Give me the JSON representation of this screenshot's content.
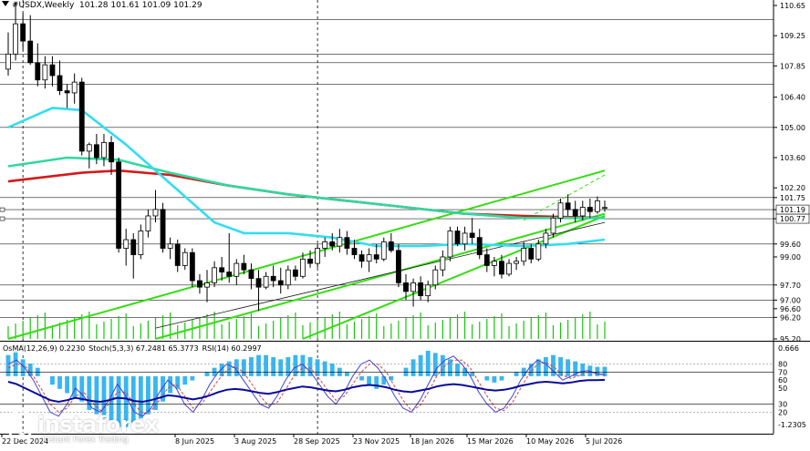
{
  "header": {
    "symbol": "#USDX,Weekly",
    "ohlc": "101.28 101.61 101.09 101.29"
  },
  "indicators": {
    "osma": "OsMA(12,26,9) 0.2230",
    "stoch": "Stoch(5,3,3) 67.2481 65.3773",
    "rsi": "RSI(14) 60.2997"
  },
  "logo": {
    "name": "instaforex",
    "tagline": "Instant Forex Trading"
  },
  "colors": {
    "bull": "#ffffff",
    "bear": "#000000",
    "ma_red": "#d6191a",
    "ma_green": "#2ed9a0",
    "ma_cyan": "#33ddf0",
    "channel": "#33dd11",
    "osma": "#38b6f2",
    "stoch_main": "#3f3fd6",
    "stoch_signal": "#d64040",
    "rsi": "#0a0a9a"
  },
  "chart_data": {
    "type": "candlestick",
    "instrument": "#USDX",
    "timeframe": "Weekly",
    "last_ohlc": {
      "open": 101.28,
      "high": 101.61,
      "low": 101.09,
      "close": 101.29
    },
    "price_axis_labels": [
      "110.65",
      "109.25",
      "107.85",
      "106.40",
      "105.00",
      "103.60",
      "102.20",
      "101.75",
      "101.19",
      "100.77",
      "99.60",
      "99.00",
      "97.70",
      "97.00",
      "96.60",
      "96.20",
      "95.20"
    ],
    "level_lines": [
      110.0,
      108.4,
      108.0,
      107.0,
      105.0,
      101.75,
      101.19,
      100.77,
      99.6,
      97.7,
      97.0,
      96.2
    ],
    "time_axis_labels": [
      "22 Dec 2024",
      "8 Jun 2025",
      "3 Aug 2025",
      "28 Sep 2025",
      "23 Nov 2025",
      "18 Jan 2026",
      "15 Mar 2026",
      "10 May 2026",
      "5 Jul 2026"
    ],
    "candles": [
      [
        107.7,
        109.4,
        107.4,
        108.4
      ],
      [
        108.4,
        110.8,
        108.1,
        109.8
      ],
      [
        109.8,
        110.3,
        108.6,
        109.0
      ],
      [
        109.0,
        110.2,
        107.9,
        108.0
      ],
      [
        108.0,
        108.9,
        106.9,
        107.2
      ],
      [
        107.2,
        108.3,
        106.8,
        107.9
      ],
      [
        107.9,
        108.3,
        106.9,
        107.4
      ],
      [
        107.4,
        108.1,
        106.5,
        106.7
      ],
      [
        106.7,
        107.0,
        105.9,
        106.6
      ],
      [
        106.6,
        107.5,
        106.1,
        107.1
      ],
      [
        107.1,
        107.3,
        103.7,
        103.9
      ],
      [
        103.9,
        104.3,
        103.1,
        104.2
      ],
      [
        104.2,
        104.7,
        103.3,
        103.6
      ],
      [
        103.6,
        104.7,
        103.2,
        104.3
      ],
      [
        104.3,
        104.6,
        102.8,
        103.4
      ],
      [
        103.4,
        103.6,
        99.2,
        99.4
      ],
      [
        99.4,
        100.3,
        98.6,
        99.8
      ],
      [
        99.8,
        100.1,
        98.0,
        99.1
      ],
      [
        99.1,
        100.5,
        98.9,
        100.2
      ],
      [
        100.2,
        101.2,
        99.9,
        100.9
      ],
      [
        100.9,
        102.1,
        100.6,
        101.2
      ],
      [
        101.2,
        101.5,
        99.2,
        99.4
      ],
      [
        99.4,
        99.9,
        98.9,
        99.6
      ],
      [
        99.6,
        99.8,
        98.3,
        98.6
      ],
      [
        98.6,
        99.4,
        98.4,
        99.2
      ],
      [
        99.2,
        99.4,
        97.6,
        97.9
      ],
      [
        97.9,
        98.2,
        97.3,
        97.6
      ],
      [
        97.6,
        98.4,
        96.9,
        97.8
      ],
      [
        97.8,
        98.8,
        97.6,
        98.5
      ],
      [
        98.5,
        99.0,
        97.9,
        98.3
      ],
      [
        98.3,
        100.1,
        97.8,
        98.1
      ],
      [
        98.1,
        98.9,
        97.7,
        98.7
      ],
      [
        98.7,
        99.1,
        98.2,
        98.4
      ],
      [
        98.4,
        98.7,
        97.5,
        98.0
      ],
      [
        98.0,
        98.4,
        96.5,
        97.6
      ],
      [
        97.6,
        98.3,
        97.5,
        98.1
      ],
      [
        98.1,
        98.6,
        97.6,
        97.9
      ],
      [
        97.9,
        98.5,
        97.3,
        97.7
      ],
      [
        97.7,
        98.6,
        97.5,
        98.4
      ],
      [
        98.4,
        98.6,
        97.9,
        98.1
      ],
      [
        98.1,
        99.2,
        98.0,
        98.9
      ],
      [
        98.9,
        99.3,
        98.5,
        98.7
      ],
      [
        98.7,
        99.6,
        98.5,
        99.4
      ],
      [
        99.4,
        99.9,
        99.0,
        99.7
      ],
      [
        99.7,
        100.1,
        99.3,
        99.5
      ],
      [
        99.5,
        100.3,
        99.2,
        99.9
      ],
      [
        99.9,
        100.2,
        99.1,
        99.4
      ],
      [
        99.4,
        99.8,
        98.9,
        99.1
      ],
      [
        99.1,
        99.3,
        98.5,
        98.8
      ],
      [
        98.8,
        99.4,
        98.3,
        99.1
      ],
      [
        99.1,
        99.6,
        98.7,
        98.9
      ],
      [
        98.9,
        99.9,
        98.8,
        99.7
      ],
      [
        99.7,
        100.1,
        99.2,
        99.3
      ],
      [
        99.3,
        99.6,
        97.6,
        97.8
      ],
      [
        97.8,
        98.2,
        97.0,
        97.4
      ],
      [
        97.4,
        98.0,
        96.7,
        97.8
      ],
      [
        97.8,
        98.1,
        97.0,
        97.2
      ],
      [
        97.2,
        97.9,
        96.9,
        97.7
      ],
      [
        97.7,
        98.6,
        97.5,
        98.4
      ],
      [
        98.4,
        99.3,
        98.1,
        99.0
      ],
      [
        99.0,
        100.4,
        98.8,
        100.2
      ],
      [
        100.2,
        100.4,
        99.5,
        99.6
      ],
      [
        99.6,
        100.4,
        99.3,
        100.1
      ],
      [
        100.1,
        100.8,
        99.6,
        99.9
      ],
      [
        99.9,
        100.3,
        98.9,
        99.1
      ],
      [
        99.1,
        99.4,
        98.3,
        98.6
      ],
      [
        98.6,
        99.0,
        98.1,
        98.8
      ],
      [
        98.8,
        99.1,
        98.0,
        98.2
      ],
      [
        98.2,
        98.9,
        98.1,
        98.7
      ],
      [
        98.7,
        99.0,
        98.4,
        98.8
      ],
      [
        98.8,
        99.7,
        98.6,
        99.4
      ],
      [
        99.4,
        99.6,
        98.7,
        98.9
      ],
      [
        98.9,
        99.8,
        98.8,
        99.6
      ],
      [
        99.6,
        100.3,
        99.4,
        100.1
      ],
      [
        100.1,
        101.0,
        99.9,
        100.8
      ],
      [
        100.8,
        101.7,
        100.6,
        101.5
      ],
      [
        101.5,
        101.9,
        100.9,
        101.2
      ],
      [
        101.2,
        101.6,
        100.6,
        100.9
      ],
      [
        100.9,
        101.6,
        100.7,
        101.3
      ],
      [
        101.3,
        101.7,
        100.8,
        101.1
      ],
      [
        101.1,
        101.8,
        101.0,
        101.6
      ],
      [
        101.28,
        101.61,
        101.09,
        101.29
      ]
    ],
    "moving_averages": [
      {
        "color": "#d6191a",
        "path": [
          [
            0,
            102.5
          ],
          [
            10,
            102.9
          ],
          [
            15,
            103.0
          ],
          [
            22,
            102.8
          ],
          [
            30,
            102.3
          ],
          [
            38,
            101.9
          ],
          [
            46,
            101.6
          ],
          [
            54,
            101.3
          ],
          [
            62,
            101.0
          ],
          [
            70,
            100.9
          ],
          [
            81,
            100.8
          ]
        ]
      },
      {
        "color": "#2ed9a0",
        "path": [
          [
            0,
            103.2
          ],
          [
            8,
            103.6
          ],
          [
            15,
            103.5
          ],
          [
            22,
            102.9
          ],
          [
            30,
            102.3
          ],
          [
            38,
            101.9
          ],
          [
            46,
            101.6
          ],
          [
            54,
            101.3
          ],
          [
            62,
            101.0
          ],
          [
            70,
            100.8
          ],
          [
            81,
            100.8
          ]
        ]
      },
      {
        "color": "#33ddf0",
        "path": [
          [
            0,
            105.0
          ],
          [
            6,
            105.9
          ],
          [
            10,
            105.8
          ],
          [
            16,
            104.2
          ],
          [
            22,
            102.4
          ],
          [
            28,
            100.6
          ],
          [
            32,
            100.1
          ],
          [
            38,
            100.1
          ],
          [
            44,
            99.9
          ],
          [
            50,
            99.5
          ],
          [
            56,
            99.5
          ],
          [
            62,
            99.6
          ],
          [
            70,
            99.5
          ],
          [
            76,
            99.6
          ],
          [
            81,
            99.8
          ]
        ]
      }
    ],
    "channel_lines": [
      {
        "from": [
          0,
          95.2
        ],
        "to": [
          81,
          103.0
        ],
        "style": "solid"
      },
      {
        "from": [
          20,
          95.2
        ],
        "to": [
          81,
          101.0
        ],
        "style": "solid"
      },
      {
        "from": [
          40,
          95.2
        ],
        "to": [
          81,
          100.9
        ],
        "style": "solid"
      },
      {
        "from": [
          70,
          100.7
        ],
        "to": [
          81,
          102.8
        ],
        "style": "dashed"
      }
    ],
    "vertical_lines": [
      2,
      42
    ],
    "osma_values": [
      0.5,
      0.6,
      0.4,
      0.3,
      0.2,
      0.0,
      -0.2,
      -0.3,
      -0.4,
      -0.5,
      -0.6,
      -0.8,
      -0.9,
      -1.0,
      -1.1,
      -1.2,
      -1.2,
      -1.1,
      -1.0,
      -0.9,
      -0.8,
      -0.6,
      -0.4,
      -0.3,
      -0.2,
      -0.1,
      0.0,
      0.1,
      0.2,
      0.3,
      0.35,
      0.4,
      0.4,
      0.45,
      0.5,
      0.5,
      0.45,
      0.4,
      0.45,
      0.5,
      0.5,
      0.45,
      0.4,
      0.35,
      0.3,
      0.2,
      0.1,
      0.0,
      -0.1,
      -0.2,
      -0.3,
      -0.2,
      -0.1,
      0.0,
      0.2,
      0.4,
      0.5,
      0.6,
      0.55,
      0.5,
      0.4,
      0.3,
      0.2,
      0.1,
      0.0,
      -0.1,
      -0.15,
      -0.1,
      0.0,
      0.1,
      0.2,
      0.3,
      0.4,
      0.45,
      0.5,
      0.45,
      0.4,
      0.35,
      0.3,
      0.25,
      0.22,
      0.223
    ],
    "stoch_main": [
      80,
      85,
      75,
      60,
      40,
      20,
      15,
      30,
      50,
      40,
      25,
      20,
      35,
      55,
      40,
      20,
      15,
      25,
      45,
      60,
      50,
      30,
      20,
      35,
      55,
      70,
      80,
      75,
      60,
      45,
      30,
      25,
      40,
      60,
      75,
      80,
      70,
      55,
      40,
      30,
      45,
      65,
      80,
      85,
      75,
      60,
      40,
      25,
      20,
      35,
      55,
      75,
      85,
      90,
      80,
      65,
      45,
      30,
      20,
      25,
      40,
      60,
      75,
      85,
      80,
      70,
      60,
      65,
      70,
      72,
      68,
      67
    ],
    "stoch_signal": [
      75,
      80,
      78,
      65,
      48,
      30,
      20,
      25,
      40,
      45,
      32,
      22,
      30,
      45,
      45,
      30,
      18,
      22,
      35,
      50,
      55,
      40,
      25,
      30,
      45,
      60,
      72,
      77,
      70,
      55,
      40,
      28,
      32,
      48,
      65,
      75,
      75,
      62,
      48,
      35,
      40,
      55,
      70,
      80,
      80,
      70,
      52,
      35,
      22,
      28,
      45,
      65,
      78,
      85,
      85,
      75,
      58,
      40,
      25,
      22,
      32,
      50,
      68,
      80,
      82,
      76,
      66,
      62,
      66,
      70,
      69,
      65
    ],
    "rsi_values": [
      58,
      55,
      50,
      45,
      40,
      35,
      33,
      35,
      38,
      36,
      34,
      33,
      35,
      38,
      37,
      34,
      33,
      35,
      38,
      41,
      40,
      38,
      36,
      38,
      41,
      45,
      48,
      49,
      48,
      46,
      44,
      43,
      45,
      48,
      50,
      52,
      51,
      49,
      47,
      46,
      48,
      51,
      53,
      54,
      53,
      51,
      48,
      46,
      45,
      47,
      49,
      52,
      54,
      55,
      54,
      52,
      50,
      48,
      47,
      48,
      50,
      53,
      55,
      57,
      58,
      57,
      56,
      57,
      59,
      60,
      60,
      60.3
    ],
    "sub_axis_labels": [
      "0.666",
      "80",
      "70",
      "60",
      "50",
      "30",
      "20",
      "-1.2305"
    ]
  }
}
